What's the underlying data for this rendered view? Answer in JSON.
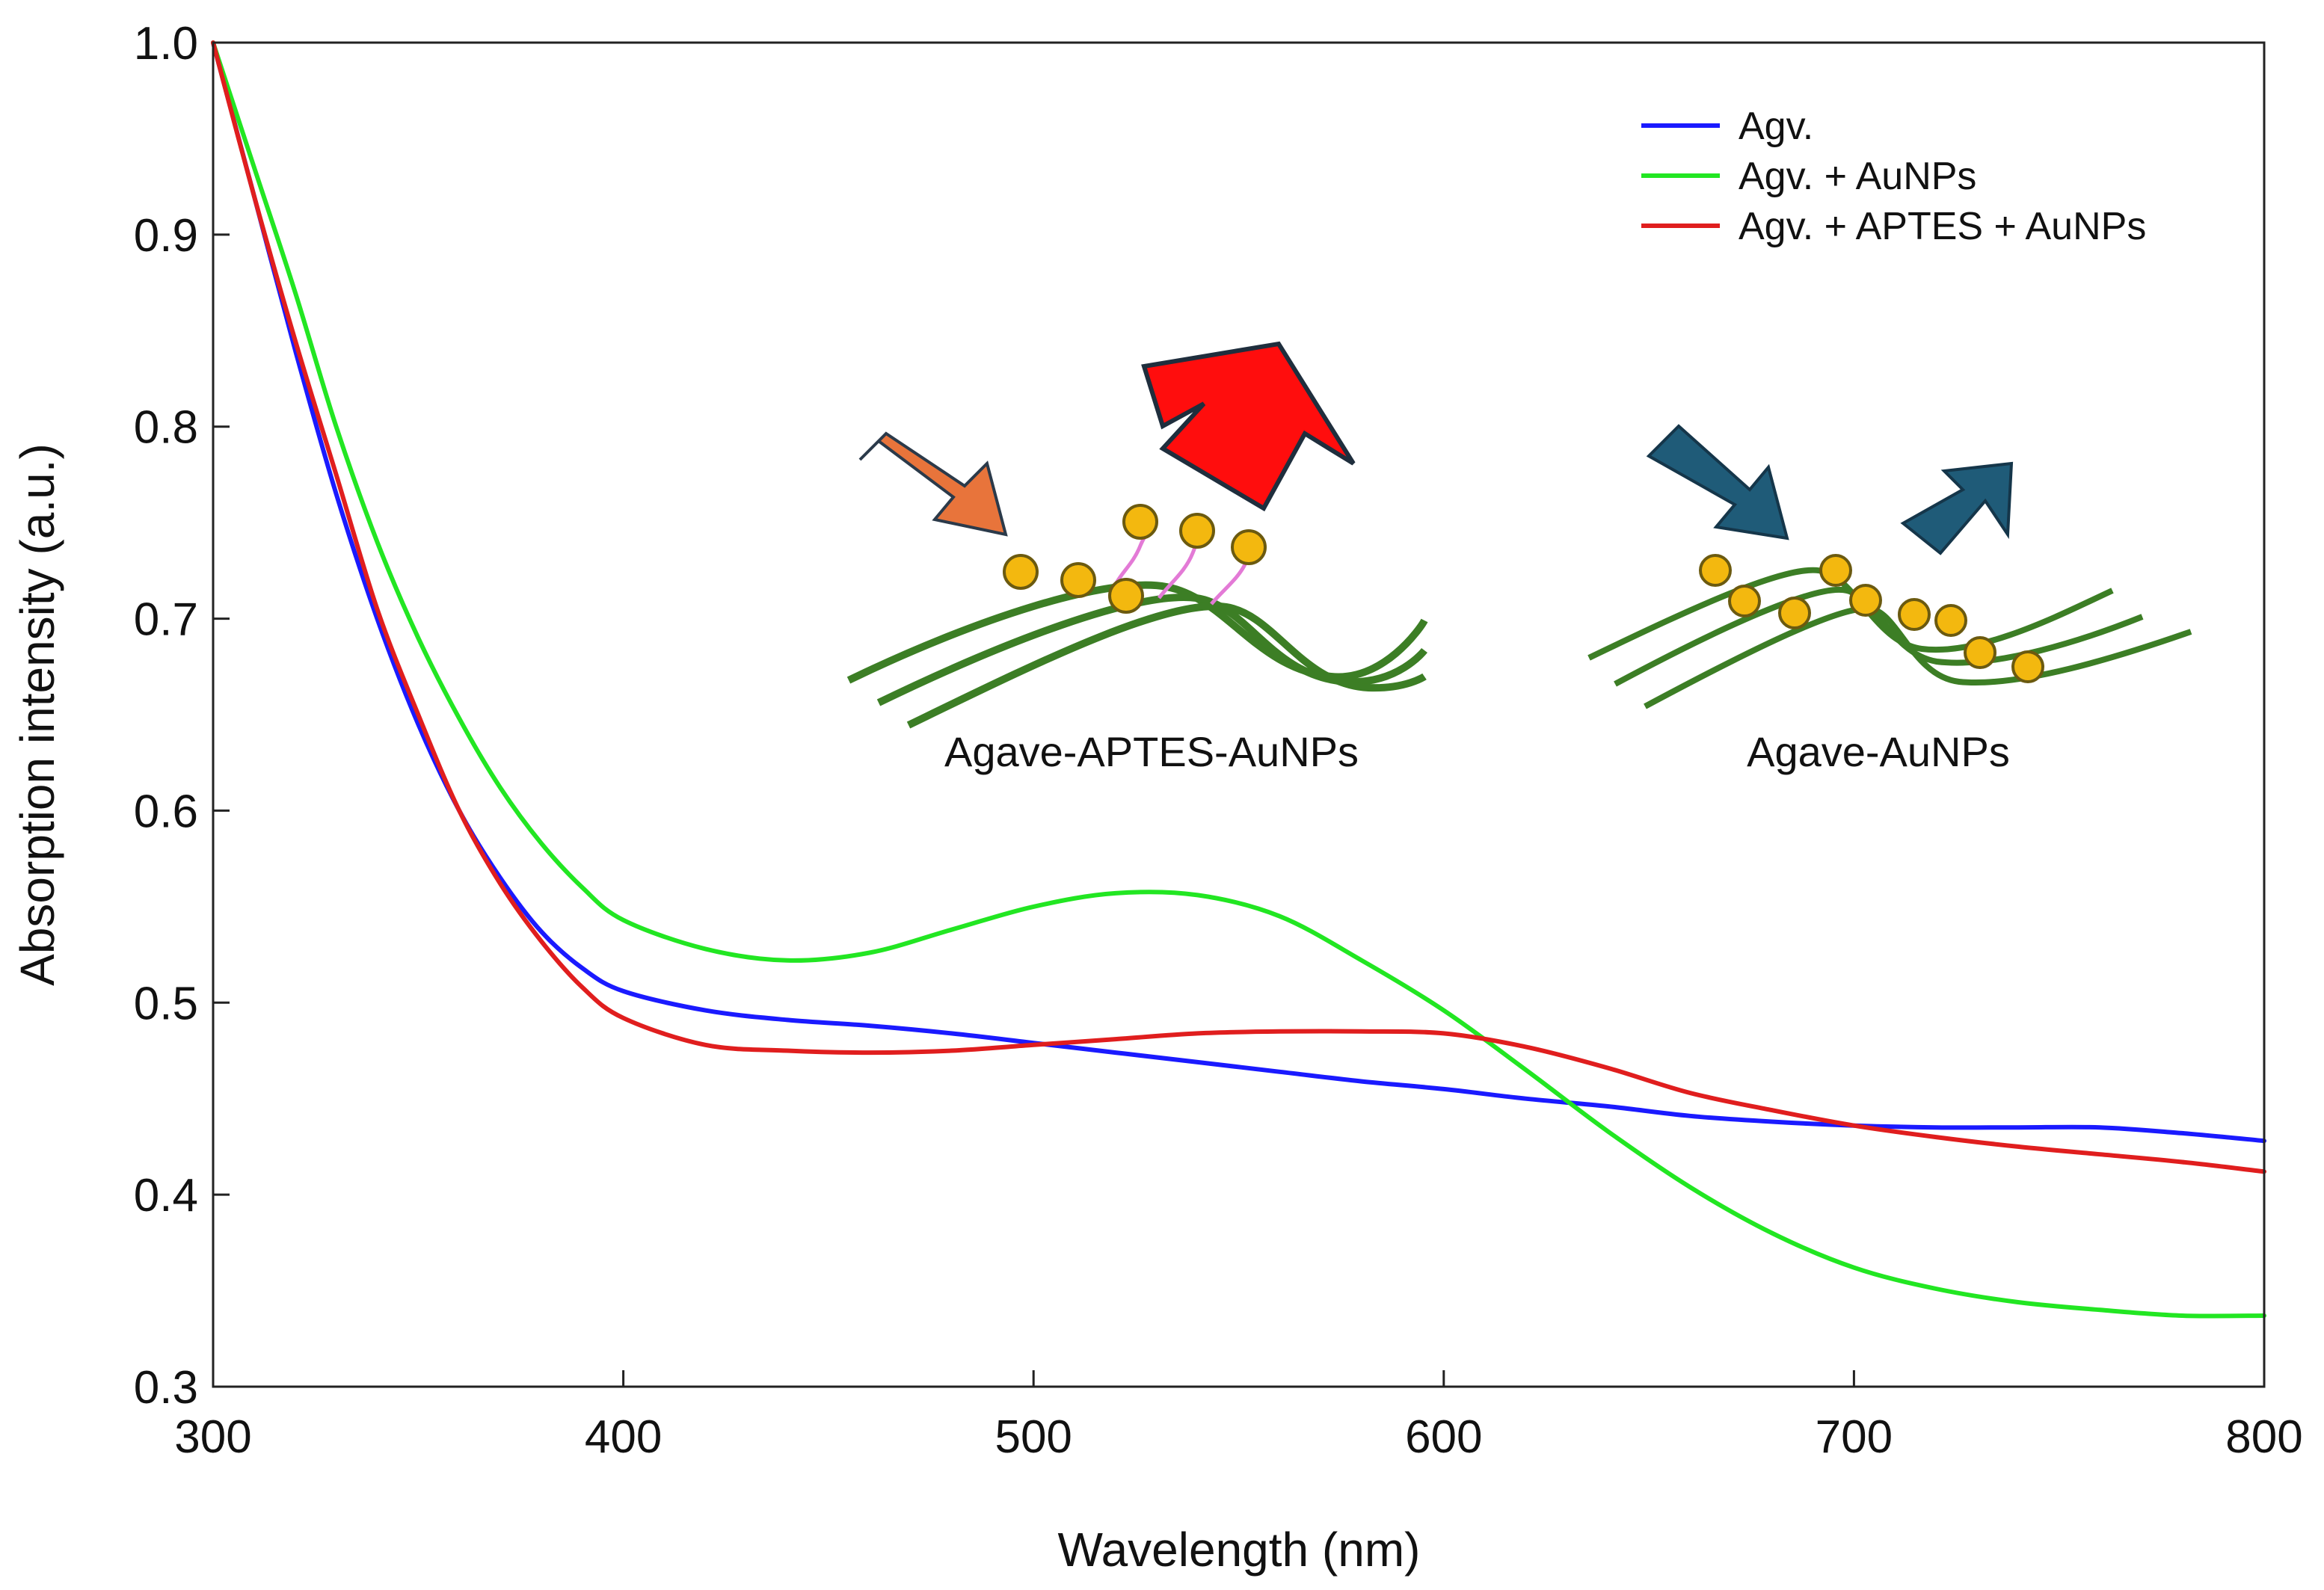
{
  "chart_data": {
    "type": "line",
    "xlabel": "Wavelength (nm)",
    "ylabel": "Absorption intensity (a.u.)",
    "xlim": [
      300,
      800
    ],
    "ylim": [
      0.3,
      1.0
    ],
    "xticks": [
      300,
      400,
      500,
      600,
      700,
      800
    ],
    "xtick_labels": [
      "300",
      "400",
      "500",
      "600",
      "700",
      "800"
    ],
    "yticks": [
      0.3,
      0.4,
      0.5,
      0.6,
      0.7,
      0.8,
      0.9,
      1.0
    ],
    "ytick_labels": [
      "0.3",
      "0.4",
      "0.5",
      "0.6",
      "0.7",
      "0.8",
      "0.9",
      "1.0"
    ],
    "grid": false,
    "legend_position": "top-right",
    "x": [
      300,
      310,
      320,
      330,
      340,
      350,
      360,
      370,
      380,
      390,
      400,
      420,
      440,
      460,
      480,
      500,
      520,
      540,
      560,
      580,
      600,
      620,
      640,
      660,
      680,
      700,
      720,
      740,
      760,
      780,
      800
    ],
    "series": [
      {
        "name": "Agv.",
        "color": "#1a1aff",
        "values": [
          1.0,
          0.92,
          0.84,
          0.765,
          0.7,
          0.645,
          0.6,
          0.565,
          0.537,
          0.518,
          0.506,
          0.496,
          0.491,
          0.488,
          0.484,
          0.479,
          0.474,
          0.469,
          0.464,
          0.459,
          0.455,
          0.45,
          0.446,
          0.441,
          0.438,
          0.436,
          0.435,
          0.435,
          0.435,
          0.432,
          0.428
        ]
      },
      {
        "name": "Agv. + AuNPs",
        "color": "#22e622",
        "values": [
          1.0,
          0.935,
          0.87,
          0.8,
          0.74,
          0.69,
          0.648,
          0.612,
          0.583,
          0.56,
          0.543,
          0.528,
          0.522,
          0.526,
          0.538,
          0.55,
          0.557,
          0.556,
          0.545,
          0.522,
          0.496,
          0.465,
          0.433,
          0.404,
          0.38,
          0.362,
          0.351,
          0.344,
          0.34,
          0.337,
          0.337
        ]
      },
      {
        "name": "Agv. + APTES + AuNPs",
        "color": "#e01e1e",
        "values": [
          1.0,
          0.92,
          0.845,
          0.775,
          0.705,
          0.65,
          0.6,
          0.562,
          0.532,
          0.508,
          0.492,
          0.478,
          0.475,
          0.474,
          0.475,
          0.478,
          0.481,
          0.484,
          0.485,
          0.485,
          0.484,
          0.477,
          0.466,
          0.453,
          0.444,
          0.436,
          0.43,
          0.425,
          0.421,
          0.417,
          0.412
        ]
      }
    ],
    "insets": [
      {
        "label": "Agave-APTES-AuNPs"
      },
      {
        "label": "Agave-AuNPs"
      }
    ]
  }
}
